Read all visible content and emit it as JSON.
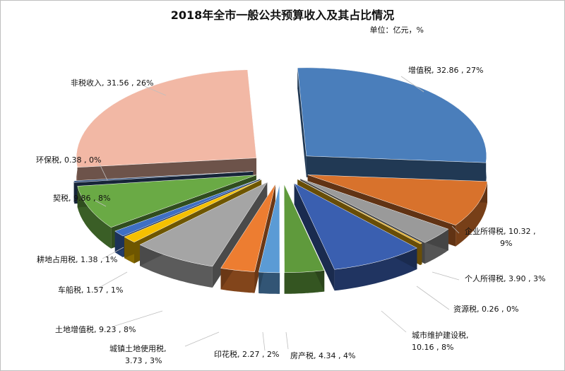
{
  "chart_data": {
    "type": "pie",
    "title": "2018年全市一般公共预算收入及其占比情况",
    "unit": "单位：亿元，%",
    "slices": [
      {
        "name": "增值税",
        "value": 32.86,
        "pct": "27%",
        "label": "增值税, 32.86 , 27%",
        "color": "#4a7ebb"
      },
      {
        "name": "企业所得税",
        "value": 10.32,
        "pct": "9%",
        "label_1": "企业所得税, 10.32 ,",
        "label_2": "9%",
        "color": "#d8722c"
      },
      {
        "name": "个人所得税",
        "value": 3.9,
        "pct": "3%",
        "label": "个人所得税, 3.90 , 3%",
        "color": "#9a9a9a"
      },
      {
        "name": "资源税",
        "value": 0.26,
        "pct": "0%",
        "label": "资源税, 0.26 , 0%",
        "color": "#e6ac10"
      },
      {
        "name": "城市维护建设税",
        "value": 10.16,
        "pct": "8%",
        "label_1": "城市维护建设税,",
        "label_2": "10.16 , 8%",
        "color": "#3a5fb0"
      },
      {
        "name": "房产税",
        "value": 4.34,
        "pct": "4%",
        "label": "房产税, 4.34 , 4%",
        "color": "#5f9a3c"
      },
      {
        "name": "印花税",
        "value": 2.27,
        "pct": "2%",
        "label": "印花税, 2.27 , 2%",
        "color": "#5b9bd5"
      },
      {
        "name": "城镇土地使用税",
        "value": 3.73,
        "pct": "3%",
        "label_1": "城镇土地使用税,",
        "label_2": "3.73 , 3%",
        "color": "#ed7d31"
      },
      {
        "name": "土地增值税",
        "value": 9.23,
        "pct": "8%",
        "label": "土地增值税, 9.23 , 8%",
        "color": "#a5a5a5"
      },
      {
        "name": "车船税",
        "value": 1.57,
        "pct": "1%",
        "label": "车船税, 1.57 , 1%",
        "color": "#f5c000"
      },
      {
        "name": "耕地占用税",
        "value": 1.38,
        "pct": "1%",
        "label": "耕地占用税, 1.38 , 1%",
        "color": "#3e6fc4"
      },
      {
        "name": "契税",
        "value": 9.86,
        "pct": "8%",
        "label": "契税, 9.86 , 8%",
        "color": "#6aaa45"
      },
      {
        "name": "环保税",
        "value": 0.38,
        "pct": "0%",
        "label": "环保税, 0.38 , 0%",
        "color": "#33527f"
      },
      {
        "name": "非税收入",
        "value": 31.56,
        "pct": "26%",
        "label": "非税收入, 31.56 , 26%",
        "color": "#f2b8a5"
      }
    ]
  }
}
